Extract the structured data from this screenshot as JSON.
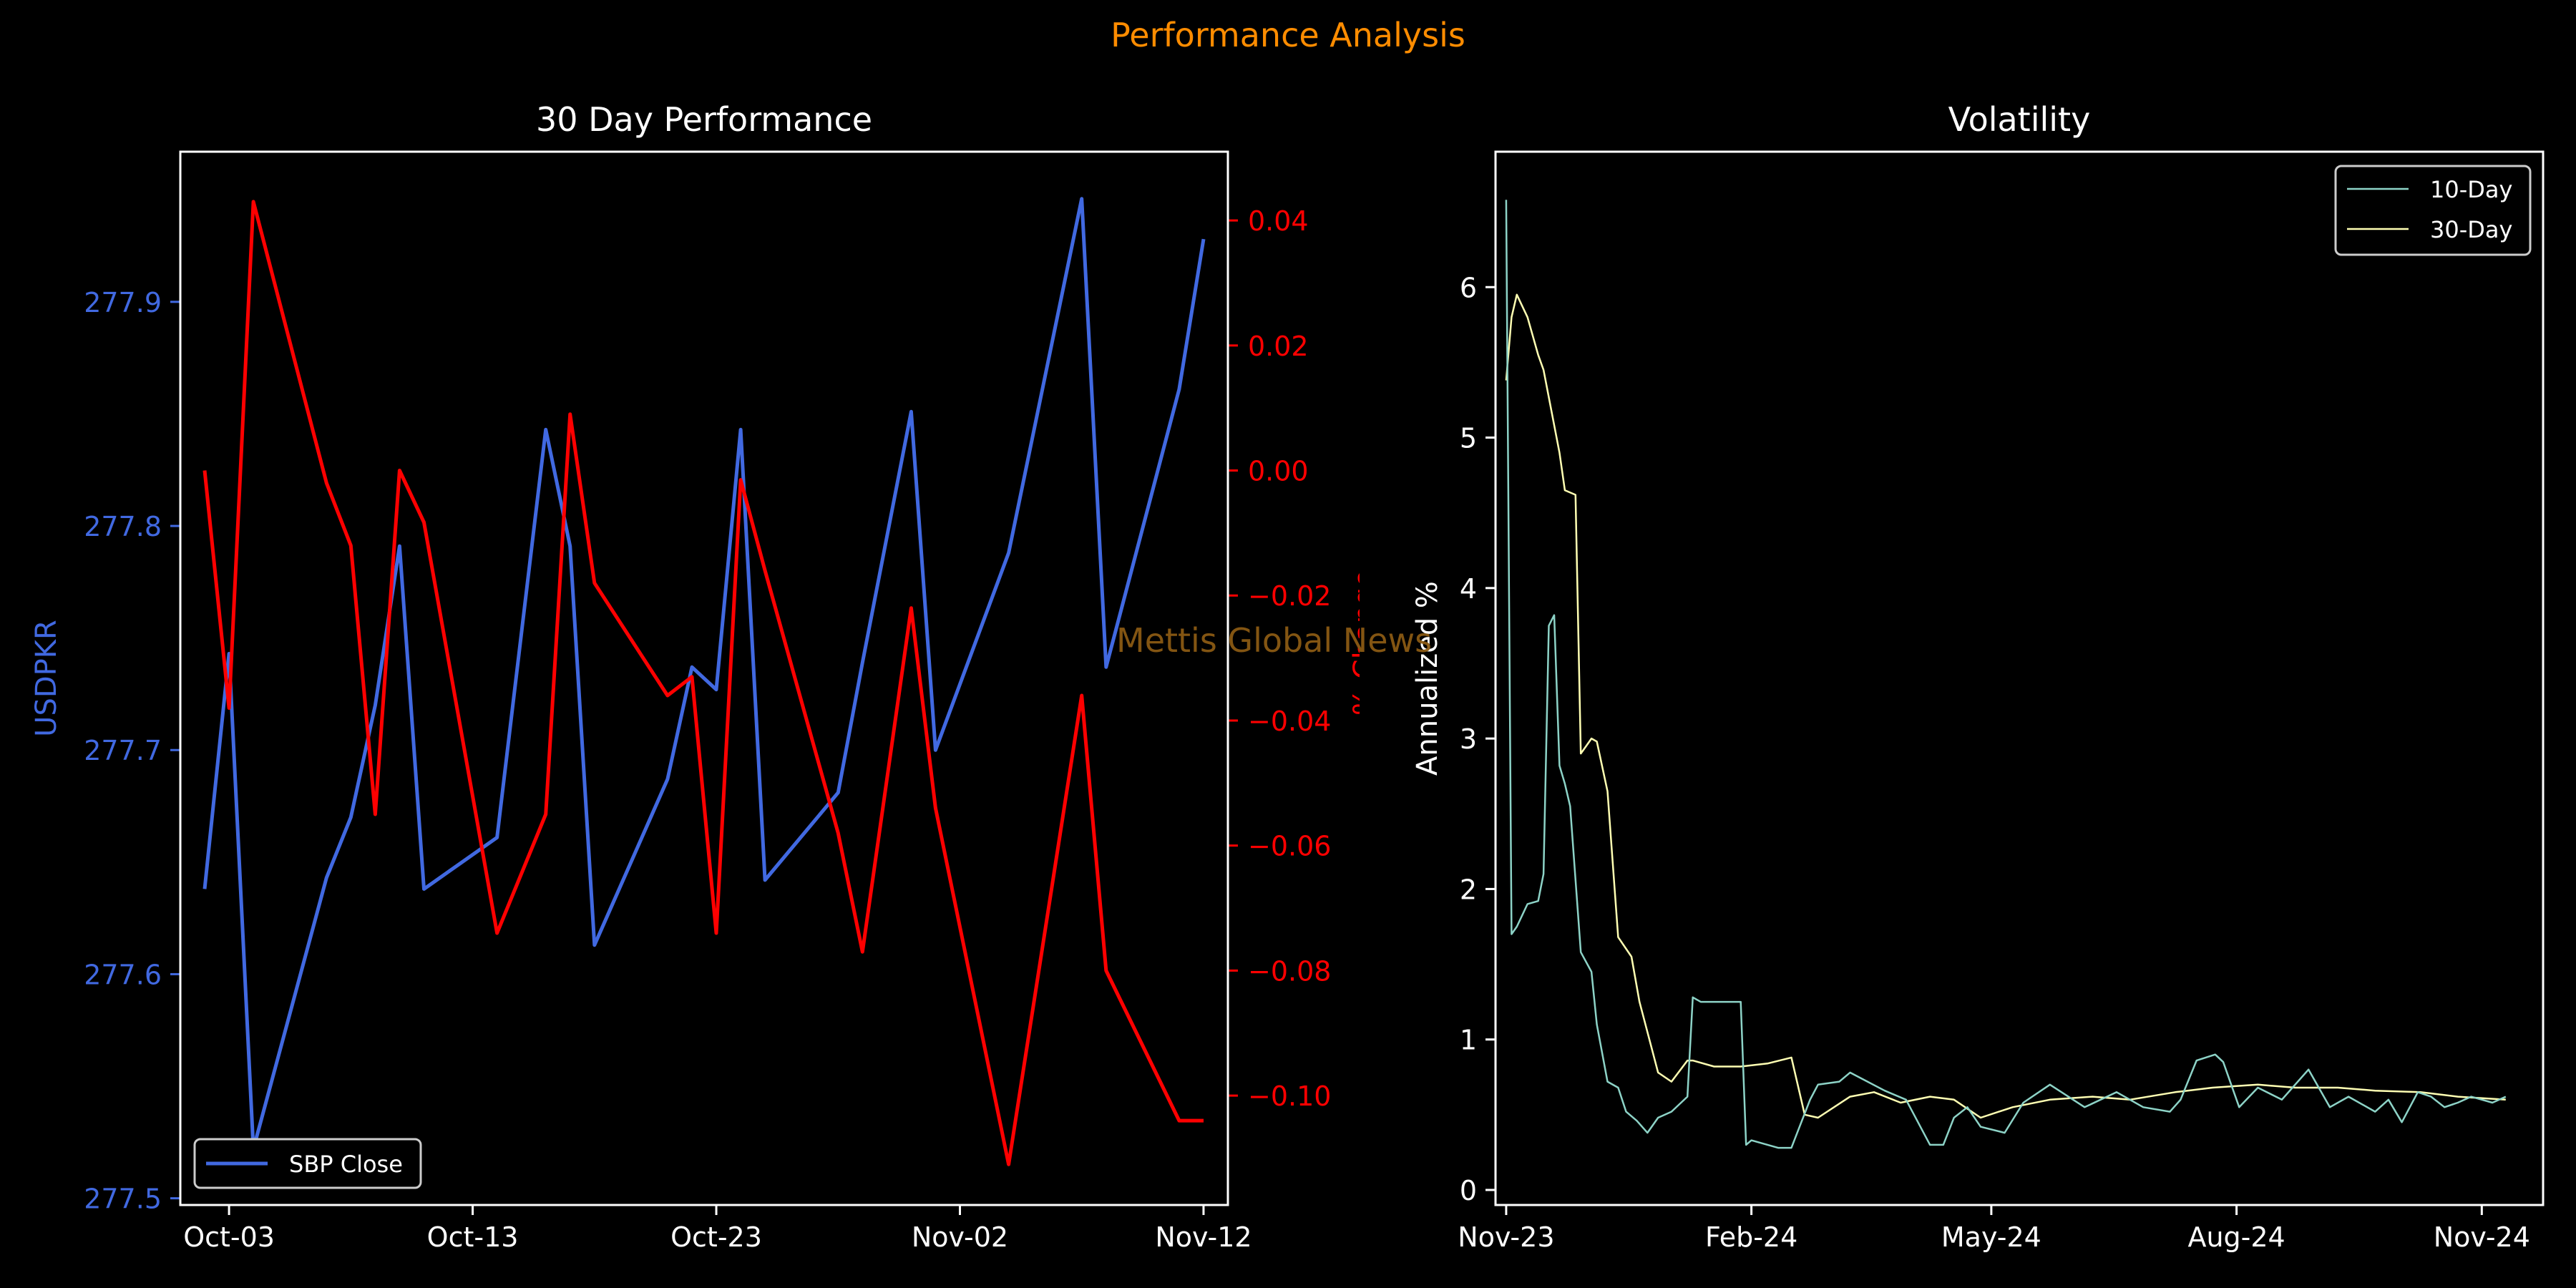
{
  "figure": {
    "suptitle": "Performance Analysis",
    "watermark": "Mettis Global News",
    "colors": {
      "background": "#000000",
      "suptitle": "#ff8c00",
      "close": "#4169e1",
      "pct_change": "#ff0000",
      "vol10": "#8dd3c7",
      "vol30": "#ffffb3",
      "axes": "#ffffff",
      "watermark": "#8b5a14"
    }
  },
  "chart_data": [
    {
      "type": "line",
      "title": "30 Day Performance",
      "xlabel": "",
      "ylabel": "USDPKR",
      "ylabel_right": "% Change",
      "xlim": [
        "2024-10-01",
        "2024-11-13"
      ],
      "ylim": [
        277.497,
        277.967
      ],
      "ylim_right": [
        -0.1175,
        0.051
      ],
      "x_ticks": [
        {
          "date": "2024-10-03",
          "label": "Oct-03"
        },
        {
          "date": "2024-10-13",
          "label": "Oct-13"
        },
        {
          "date": "2024-10-23",
          "label": "Oct-23"
        },
        {
          "date": "2024-11-02",
          "label": "Nov-02"
        },
        {
          "date": "2024-11-12",
          "label": "Nov-12"
        }
      ],
      "y_ticks": [
        277.5,
        277.6,
        277.7,
        277.8,
        277.9
      ],
      "y_ticks_right": [
        0.04,
        0.02,
        0.0,
        -0.02,
        -0.04,
        -0.06,
        -0.08,
        -0.1
      ],
      "legend": {
        "position": "lower-left",
        "entries": [
          "SBP Close"
        ]
      },
      "series": [
        {
          "name": "SBP Close",
          "axis": "left",
          "x": [
            "2024-10-02",
            "2024-10-03",
            "2024-10-04",
            "2024-10-07",
            "2024-10-08",
            "2024-10-09",
            "2024-10-10",
            "2024-10-11",
            "2024-10-14",
            "2024-10-16",
            "2024-10-17",
            "2024-10-18",
            "2024-10-21",
            "2024-10-22",
            "2024-10-23",
            "2024-10-24",
            "2024-10-25",
            "2024-10-28",
            "2024-10-29",
            "2024-10-31",
            "2024-11-01",
            "2024-11-04",
            "2024-11-07",
            "2024-11-08",
            "2024-11-11",
            "2024-11-12"
          ],
          "values": [
            277.638,
            277.743,
            277.522,
            277.643,
            277.67,
            277.72,
            277.791,
            277.638,
            277.661,
            277.843,
            277.791,
            277.613,
            277.687,
            277.737,
            277.727,
            277.843,
            277.642,
            277.681,
            277.739,
            277.851,
            277.7,
            277.788,
            277.946,
            277.737,
            277.861,
            277.928
          ]
        },
        {
          "name": "% Change",
          "axis": "right",
          "x": [
            "2024-10-02",
            "2024-10-03",
            "2024-10-04",
            "2024-10-07",
            "2024-10-08",
            "2024-10-09",
            "2024-10-10",
            "2024-10-11",
            "2024-10-14",
            "2024-10-16",
            "2024-10-17",
            "2024-10-18",
            "2024-10-21",
            "2024-10-22",
            "2024-10-23",
            "2024-10-24",
            "2024-10-25",
            "2024-10-28",
            "2024-10-29",
            "2024-10-31",
            "2024-11-01",
            "2024-11-04",
            "2024-11-07",
            "2024-11-08",
            "2024-11-11",
            "2024-11-12"
          ],
          "values": [
            0.0,
            -0.038,
            0.043,
            -0.002,
            -0.012,
            -0.055,
            0.0,
            -0.0083,
            -0.074,
            -0.055,
            0.009,
            -0.018,
            -0.036,
            -0.033,
            -0.074,
            -0.0015,
            -0.016,
            -0.058,
            -0.077,
            -0.022,
            -0.054,
            -0.111,
            -0.036,
            -0.08,
            -0.104,
            -0.104
          ]
        }
      ]
    },
    {
      "type": "line",
      "title": "Volatility",
      "xlabel": "",
      "ylabel": "Annualized %",
      "xlim": [
        "2023-11-20",
        "2024-12-17"
      ],
      "ylim": [
        -0.1,
        6.9
      ],
      "x_ticks": [
        {
          "date": "2023-11-24",
          "label": "Nov-23"
        },
        {
          "date": "2024-02-24",
          "label": "Feb-24"
        },
        {
          "date": "2024-05-24",
          "label": "May-24"
        },
        {
          "date": "2024-08-24",
          "label": "Aug-24"
        },
        {
          "date": "2024-11-24",
          "label": "Nov-24"
        }
      ],
      "y_ticks": [
        0,
        1,
        2,
        3,
        4,
        5,
        6
      ],
      "legend": {
        "position": "upper-right",
        "entries": [
          "10-Day",
          "30-Day"
        ]
      },
      "series": [
        {
          "name": "10-Day",
          "x": [
            "2023-11-24",
            "2023-11-26",
            "2023-11-28",
            "2023-12-02",
            "2023-12-06",
            "2023-12-08",
            "2023-12-10",
            "2023-12-12",
            "2023-12-14",
            "2023-12-16",
            "2023-12-18",
            "2023-12-22",
            "2023-12-26",
            "2023-12-28",
            "2024-01-01",
            "2024-01-05",
            "2024-01-08",
            "2024-01-12",
            "2024-01-16",
            "2024-01-20",
            "2024-01-25",
            "2024-01-31",
            "2024-02-02",
            "2024-02-05",
            "2024-02-20",
            "2024-02-22",
            "2024-02-24",
            "2024-03-05",
            "2024-03-10",
            "2024-03-17",
            "2024-03-20",
            "2024-03-28",
            "2024-04-01",
            "2024-04-14",
            "2024-04-22",
            "2024-05-01",
            "2024-05-06",
            "2024-05-10",
            "2024-05-15",
            "2024-05-20",
            "2024-05-29",
            "2024-06-05",
            "2024-06-15",
            "2024-06-28",
            "2024-07-10",
            "2024-07-20",
            "2024-07-30",
            "2024-08-03",
            "2024-08-09",
            "2024-08-16",
            "2024-08-19",
            "2024-08-25",
            "2024-09-01",
            "2024-09-10",
            "2024-09-20",
            "2024-09-28",
            "2024-10-05",
            "2024-10-15",
            "2024-10-20",
            "2024-10-25",
            "2024-10-31",
            "2024-11-05",
            "2024-11-10",
            "2024-11-15",
            "2024-11-20",
            "2024-11-28",
            "2024-12-03"
          ],
          "values": [
            6.58,
            1.7,
            1.75,
            1.9,
            1.92,
            2.1,
            3.75,
            3.82,
            2.82,
            2.7,
            2.55,
            1.58,
            1.45,
            1.1,
            0.72,
            0.68,
            0.52,
            0.46,
            0.38,
            0.48,
            0.52,
            0.62,
            1.28,
            1.25,
            1.25,
            0.3,
            0.33,
            0.28,
            0.28,
            0.6,
            0.7,
            0.72,
            0.78,
            0.66,
            0.6,
            0.3,
            0.3,
            0.48,
            0.55,
            0.42,
            0.38,
            0.58,
            0.7,
            0.55,
            0.65,
            0.55,
            0.52,
            0.6,
            0.86,
            0.9,
            0.85,
            0.55,
            0.68,
            0.6,
            0.8,
            0.55,
            0.62,
            0.52,
            0.6,
            0.45,
            0.65,
            0.62,
            0.55,
            0.58,
            0.62,
            0.58,
            0.62
          ]
        },
        {
          "name": "30-Day",
          "x": [
            "2023-11-24",
            "2023-11-26",
            "2023-11-28",
            "2023-12-02",
            "2023-12-06",
            "2023-12-08",
            "2023-12-14",
            "2023-12-16",
            "2023-12-20",
            "2023-12-22",
            "2023-12-24",
            "2023-12-26",
            "2023-12-28",
            "2024-01-01",
            "2024-01-05",
            "2024-01-10",
            "2024-01-13",
            "2024-01-20",
            "2024-01-25",
            "2024-01-31",
            "2024-02-02",
            "2024-02-10",
            "2024-02-20",
            "2024-03-01",
            "2024-03-10",
            "2024-03-15",
            "2024-03-20",
            "2024-04-01",
            "2024-04-10",
            "2024-04-20",
            "2024-05-01",
            "2024-05-10",
            "2024-05-20",
            "2024-06-01",
            "2024-06-15",
            "2024-07-01",
            "2024-07-15",
            "2024-08-01",
            "2024-08-15",
            "2024-09-01",
            "2024-09-15",
            "2024-10-01",
            "2024-10-15",
            "2024-11-01",
            "2024-11-15",
            "2024-12-03"
          ],
          "values": [
            5.38,
            5.8,
            5.95,
            5.8,
            5.55,
            5.45,
            4.9,
            4.65,
            4.62,
            2.9,
            2.95,
            3.0,
            2.98,
            2.65,
            1.68,
            1.55,
            1.25,
            0.78,
            0.72,
            0.86,
            0.86,
            0.82,
            0.82,
            0.84,
            0.88,
            0.5,
            0.48,
            0.62,
            0.65,
            0.58,
            0.62,
            0.6,
            0.48,
            0.55,
            0.6,
            0.62,
            0.6,
            0.65,
            0.68,
            0.7,
            0.68,
            0.68,
            0.66,
            0.65,
            0.62,
            0.6
          ]
        }
      ]
    }
  ]
}
